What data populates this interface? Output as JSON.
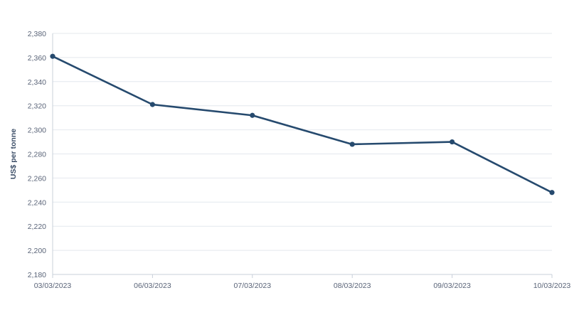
{
  "chart_data": {
    "type": "line",
    "categories": [
      "03/03/2023",
      "06/03/2023",
      "07/03/2023",
      "08/03/2023",
      "09/03/2023",
      "10/03/2023"
    ],
    "series": [
      {
        "values": [
          2361,
          2321,
          2312,
          2288,
          2290,
          2248
        ]
      }
    ],
    "title": "",
    "xlabel": "",
    "ylabel": "US$ per tonne",
    "ylim": [
      2180,
      2380
    ],
    "yticks": [
      "2,180",
      "2,200",
      "2,220",
      "2,240",
      "2,260",
      "2,280",
      "2,300",
      "2,320",
      "2,340",
      "2,360",
      "2,380"
    ],
    "grid": true,
    "legend": "none",
    "line_color": "#264a6e"
  }
}
